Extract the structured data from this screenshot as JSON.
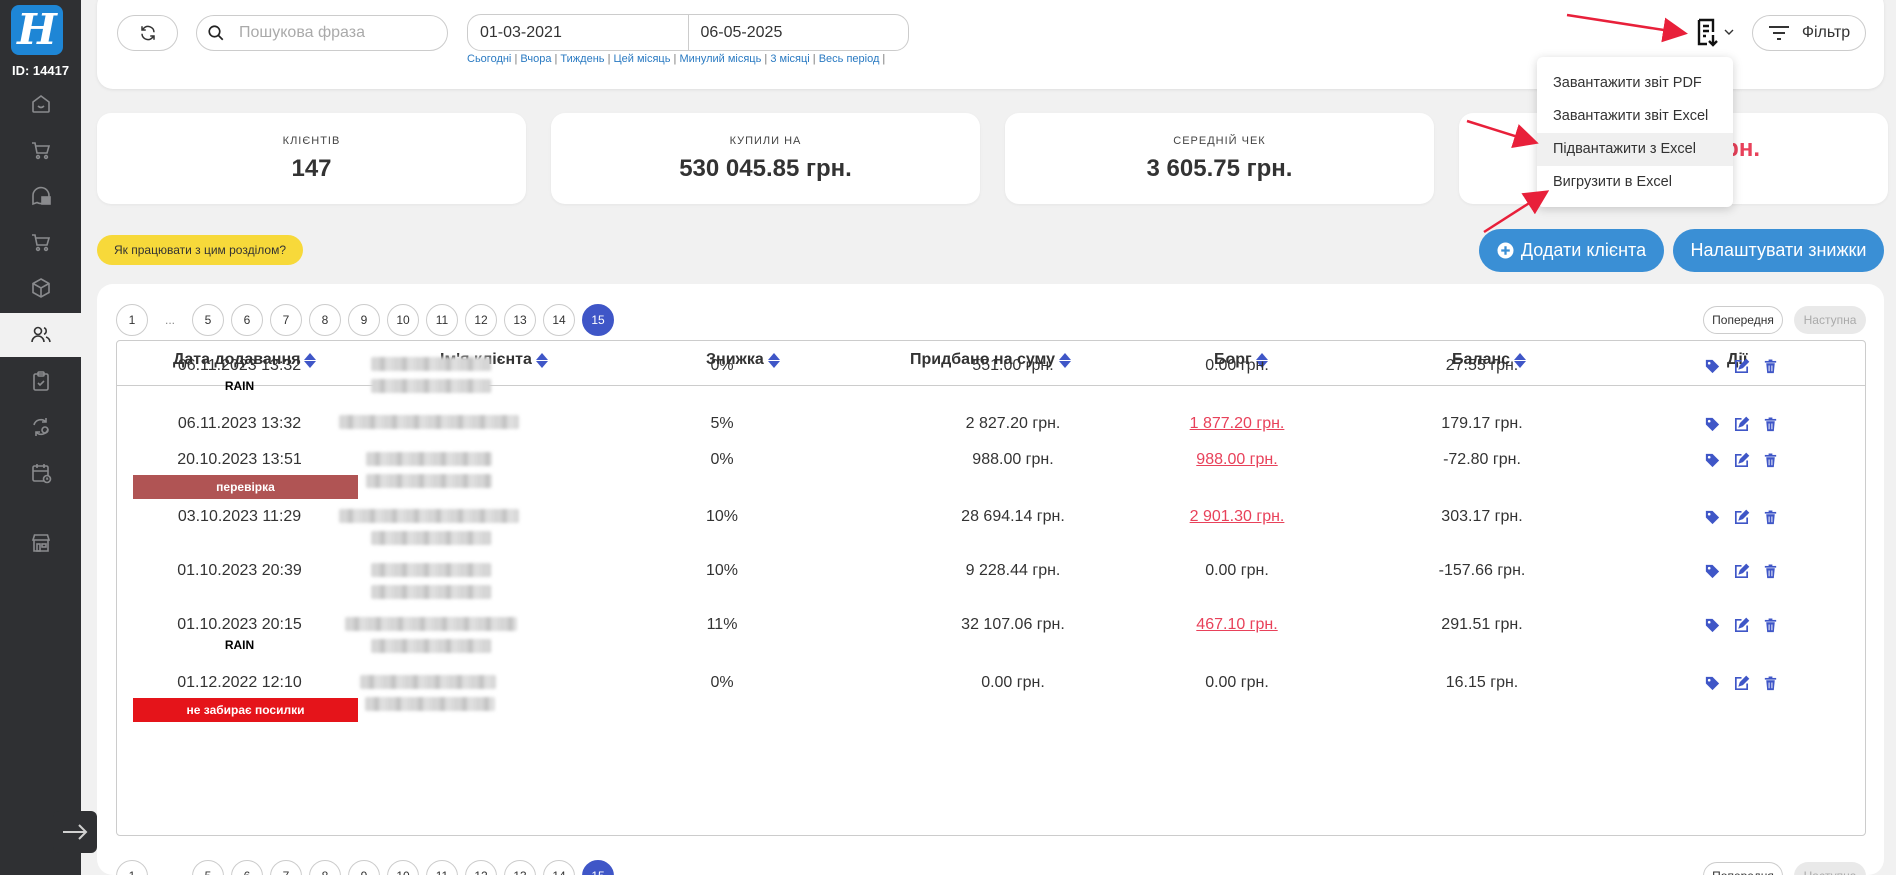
{
  "sidebar": {
    "logo": "H",
    "user_id": "ID: 14417",
    "items": [
      {
        "icon": "home-icon"
      },
      {
        "icon": "cart-icon"
      },
      {
        "icon": "messages-icon"
      },
      {
        "icon": "cart-icon"
      },
      {
        "icon": "box-icon"
      },
      {
        "icon": "clients-icon",
        "active": true
      },
      {
        "icon": "clipboard-icon"
      },
      {
        "icon": "exchange-icon"
      },
      {
        "icon": "calendar-icon"
      },
      {
        "icon": "store-icon"
      }
    ],
    "collapse_icon": "arrow-right-icon"
  },
  "toolbar": {
    "search_placeholder": "Пошукова фраза",
    "date_from": "01-03-2021",
    "date_to": "06-05-2025",
    "quick_periods": [
      "Сьогодні",
      "Вчора",
      "Тиждень",
      "Цей місяць",
      "Минулий місяць",
      "3 місяці",
      "Весь період"
    ],
    "filter_label": "Фільтр"
  },
  "report_menu": {
    "items": [
      "Завантажити звіт PDF",
      "Завантажити звіт Excel",
      "Підвантажити з Excel",
      "Вигрузити в Excel"
    ],
    "hovered": 2
  },
  "stats": [
    {
      "label": "КЛІЄНТІВ",
      "value": "147"
    },
    {
      "label": "КУПИЛИ НА",
      "value": "530 045.85 грн."
    },
    {
      "label": "СЕРЕДНІЙ ЧЕК",
      "value": "3 605.75 грн."
    },
    {
      "label": "",
      "value": "рн."
    }
  ],
  "help_label": "Як працювати з цим розділом?",
  "add_client_label": "Додати клієнта",
  "setup_discounts_label": "Налаштувати знижки",
  "pagination": {
    "pages": [
      "1",
      "...",
      "5",
      "6",
      "7",
      "8",
      "9",
      "10",
      "11",
      "12",
      "13",
      "14",
      "15"
    ],
    "current": "15",
    "prev_label": "Попередня",
    "next_label": "Наступна"
  },
  "table": {
    "headers": [
      "Дата додавання",
      "Ім'я клієнта",
      "Знижка",
      "Придбано на суму",
      "Борг",
      "Баланс",
      "Дії"
    ],
    "rows": [
      {
        "date": "06.11.2023 13:32",
        "tag": "RAIN",
        "tag_style": "plain",
        "discount": "0%",
        "purchased": "551.00 грн.",
        "debt": "0.00 грн.",
        "debt_link": false,
        "balance": "27.55 грн."
      },
      {
        "date": "06.11.2023 13:32",
        "tag": "",
        "tag_style": "",
        "discount": "5%",
        "purchased": "2 827.20 грн.",
        "debt": "1 877.20 грн.",
        "debt_link": true,
        "balance": "179.17 грн."
      },
      {
        "date": "20.10.2023 13:51",
        "tag": "перевірка",
        "tag_style": "box",
        "tag_color": "#b05454",
        "discount": "0%",
        "purchased": "988.00 грн.",
        "debt": "988.00 грн.",
        "debt_link": true,
        "balance": "-72.80 грн."
      },
      {
        "date": "03.10.2023 11:29",
        "tag": "",
        "tag_style": "",
        "discount": "10%",
        "purchased": "28 694.14 грн.",
        "debt": "2 901.30 грн.",
        "debt_link": true,
        "balance": "303.17 грн."
      },
      {
        "date": "01.10.2023 20:39",
        "tag": "",
        "tag_style": "",
        "discount": "10%",
        "purchased": "9 228.44 грн.",
        "debt": "0.00 грн.",
        "debt_link": false,
        "balance": "-157.66 грн."
      },
      {
        "date": "01.10.2023 20:15",
        "tag": "RAIN",
        "tag_style": "plain",
        "discount": "11%",
        "purchased": "32 107.06 грн.",
        "debt": "467.10 грн.",
        "debt_link": true,
        "balance": "291.51 грн."
      },
      {
        "date": "01.12.2022 12:10",
        "tag": "не забирає посилки",
        "tag_style": "box",
        "tag_color": "#e5141a",
        "discount": "0%",
        "purchased": "0.00 грн.",
        "debt": "0.00 грн.",
        "debt_link": false,
        "balance": "16.15 грн."
      }
    ],
    "action_icons": [
      "tag-icon",
      "edit-icon",
      "trash-icon"
    ]
  },
  "colors": {
    "sidebar": "#2f3033",
    "logo": "#1e86d6",
    "primary_button": "#3a8fd5",
    "page_active": "#3f56c7",
    "debt_red": "#e8415a",
    "help_yellow": "#f7d93a",
    "arrow_red": "#e8203a"
  }
}
